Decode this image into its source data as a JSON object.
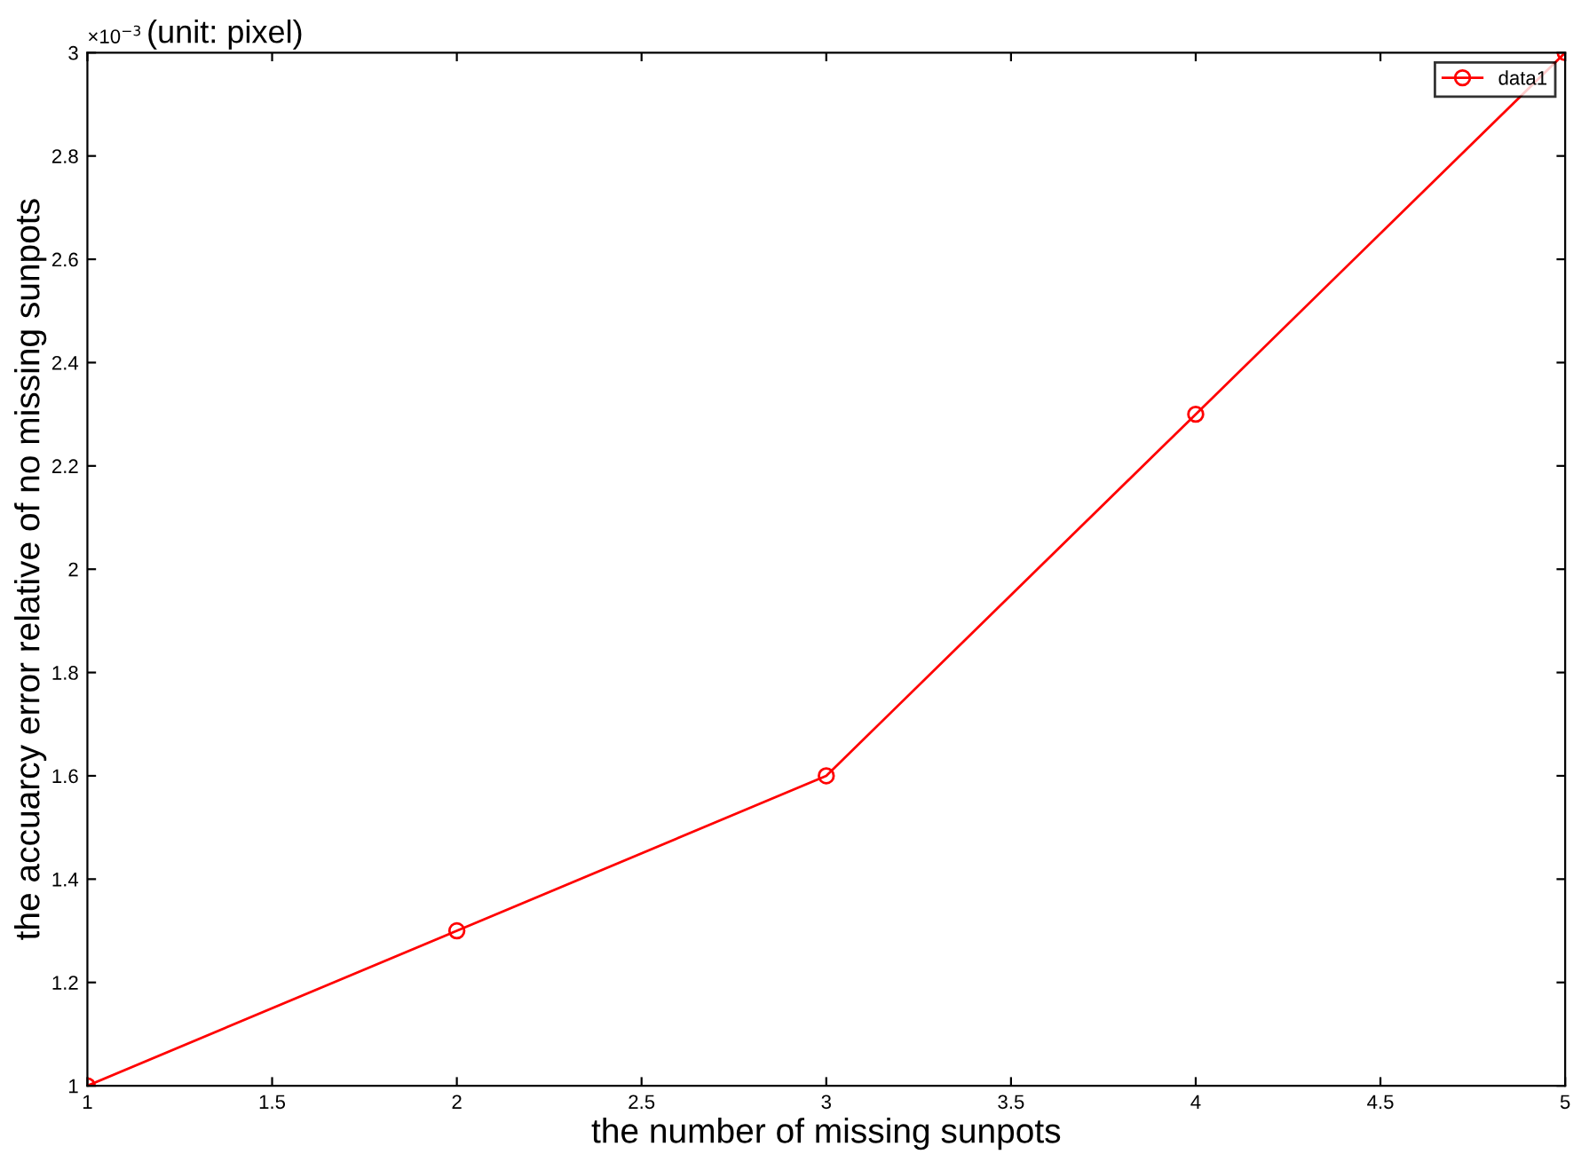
{
  "chart_data": {
    "type": "line",
    "title": "(unit: pixel)",
    "xlabel": "the number of missing sunpots",
    "ylabel": "the accuarcy error relative of no missing sunpots",
    "x": [
      1,
      2,
      3,
      4,
      5
    ],
    "series": [
      {
        "name": "data1",
        "color": "#ff0000",
        "values": [
          1,
          1.3,
          1.6,
          2.3,
          3
        ]
      }
    ],
    "annotations": [
      "×10$^{−3}$"
    ],
    "xlim": [
      1,
      5
    ],
    "xticks": [
      1,
      1.5,
      2,
      2.5,
      3,
      3.5,
      4,
      4.5,
      5
    ],
    "ylim": [
      1,
      3
    ],
    "yticks": [
      1,
      1.2,
      1.4,
      1.6,
      1.8,
      2,
      2.2,
      2.4,
      2.6,
      2.8,
      3
    ],
    "marker": "circle",
    "line_style": "solid",
    "legend": "top right",
    "grid": false
  }
}
